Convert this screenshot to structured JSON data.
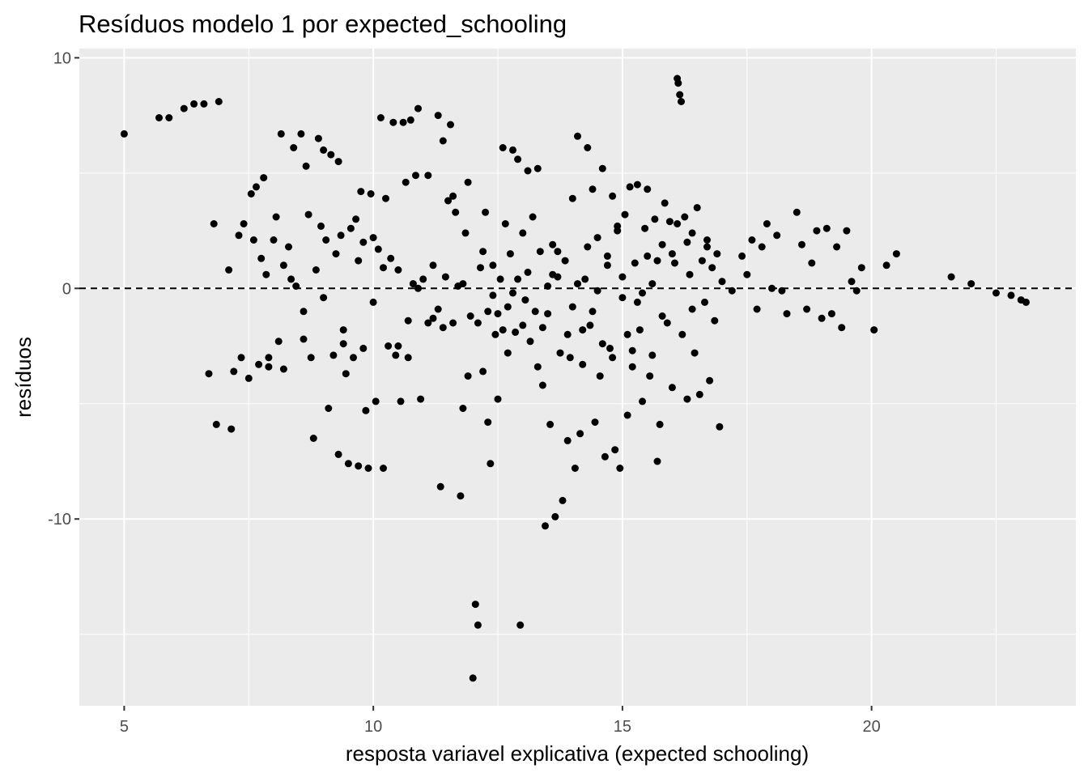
{
  "chart_data": {
    "type": "scatter",
    "title": "Resíduos modelo 1 por expected_schooling",
    "xlabel": "resposta variavel explicativa (expected schooling)",
    "ylabel": "resíduos",
    "xlim": [
      4.1,
      24.1
    ],
    "ylim": [
      -18.1,
      10.4
    ],
    "x_ticks": [
      5,
      10,
      15,
      20
    ],
    "x_tick_labels": [
      "5",
      "10",
      "15",
      "20"
    ],
    "y_ticks": [
      -10,
      0,
      10
    ],
    "y_tick_labels": [
      "-10",
      "0",
      "10"
    ],
    "hline": 0,
    "grid": true,
    "background": "#ebebeb",
    "point_color": "#000000",
    "points": [
      [
        5.0,
        6.7
      ],
      [
        5.7,
        7.4
      ],
      [
        5.9,
        7.4
      ],
      [
        6.2,
        7.8
      ],
      [
        6.4,
        8.0
      ],
      [
        6.6,
        8.0
      ],
      [
        6.9,
        8.1
      ],
      [
        6.7,
        -3.7
      ],
      [
        6.8,
        2.8
      ],
      [
        6.85,
        -5.9
      ],
      [
        7.1,
        0.8
      ],
      [
        7.15,
        -6.1
      ],
      [
        7.2,
        -3.6
      ],
      [
        7.3,
        2.3
      ],
      [
        7.4,
        2.8
      ],
      [
        7.35,
        -3.0
      ],
      [
        7.5,
        -3.9
      ],
      [
        7.55,
        4.1
      ],
      [
        7.6,
        2.1
      ],
      [
        7.65,
        4.4
      ],
      [
        7.7,
        -3.3
      ],
      [
        7.75,
        1.3
      ],
      [
        7.8,
        4.8
      ],
      [
        7.85,
        0.6
      ],
      [
        7.9,
        -3.0
      ],
      [
        8.0,
        2.1
      ],
      [
        8.05,
        3.1
      ],
      [
        8.1,
        -2.3
      ],
      [
        8.15,
        6.7
      ],
      [
        8.2,
        -3.5
      ],
      [
        8.3,
        1.8
      ],
      [
        8.35,
        0.4
      ],
      [
        8.4,
        6.1
      ],
      [
        8.45,
        0.1
      ],
      [
        8.55,
        6.7
      ],
      [
        8.6,
        -2.2
      ],
      [
        8.65,
        5.3
      ],
      [
        8.7,
        3.2
      ],
      [
        8.75,
        -3.0
      ],
      [
        8.8,
        -6.5
      ],
      [
        8.85,
        0.8
      ],
      [
        8.9,
        6.5
      ],
      [
        8.95,
        2.7
      ],
      [
        9.0,
        -0.4
      ],
      [
        9.05,
        2.1
      ],
      [
        9.1,
        -5.2
      ],
      [
        9.15,
        5.8
      ],
      [
        9.2,
        -2.9
      ],
      [
        9.25,
        1.5
      ],
      [
        9.3,
        -7.2
      ],
      [
        9.35,
        2.3
      ],
      [
        9.4,
        -1.8
      ],
      [
        9.45,
        -3.7
      ],
      [
        9.5,
        -7.6
      ],
      [
        9.55,
        2.6
      ],
      [
        9.6,
        -3.0
      ],
      [
        9.65,
        3.0
      ],
      [
        9.7,
        -7.7
      ],
      [
        9.75,
        4.2
      ],
      [
        9.8,
        -2.6
      ],
      [
        9.85,
        -5.3
      ],
      [
        9.9,
        -7.8
      ],
      [
        9.95,
        4.1
      ],
      [
        10.0,
        2.2
      ],
      [
        10.05,
        -4.9
      ],
      [
        10.1,
        1.7
      ],
      [
        10.15,
        7.4
      ],
      [
        10.2,
        -7.8
      ],
      [
        10.25,
        3.9
      ],
      [
        10.3,
        -2.5
      ],
      [
        10.35,
        1.3
      ],
      [
        10.4,
        7.2
      ],
      [
        10.45,
        -2.9
      ],
      [
        10.5,
        0.8
      ],
      [
        10.55,
        -4.9
      ],
      [
        10.6,
        7.2
      ],
      [
        10.65,
        4.6
      ],
      [
        10.7,
        -3.0
      ],
      [
        10.75,
        7.3
      ],
      [
        10.8,
        0.2
      ],
      [
        10.85,
        4.9
      ],
      [
        10.9,
        7.8
      ],
      [
        10.95,
        -4.8
      ],
      [
        11.0,
        0.4
      ],
      [
        11.1,
        4.9
      ],
      [
        11.2,
        -1.3
      ],
      [
        11.3,
        7.5
      ],
      [
        11.35,
        -8.6
      ],
      [
        11.4,
        6.4
      ],
      [
        11.45,
        0.5
      ],
      [
        11.5,
        3.8
      ],
      [
        11.55,
        7.1
      ],
      [
        11.6,
        -1.5
      ],
      [
        11.65,
        3.3
      ],
      [
        11.7,
        0.1
      ],
      [
        11.75,
        -9.0
      ],
      [
        11.8,
        -5.2
      ],
      [
        11.85,
        2.4
      ],
      [
        11.9,
        4.6
      ],
      [
        11.95,
        -1.2
      ],
      [
        12.0,
        -16.9
      ],
      [
        12.05,
        -13.7
      ],
      [
        12.1,
        -14.6
      ],
      [
        12.15,
        0.9
      ],
      [
        12.2,
        -3.6
      ],
      [
        12.25,
        3.3
      ],
      [
        12.3,
        -5.8
      ],
      [
        12.35,
        -7.6
      ],
      [
        12.4,
        1.0
      ],
      [
        12.45,
        -2.0
      ],
      [
        12.5,
        -4.8
      ],
      [
        12.55,
        0.4
      ],
      [
        12.6,
        6.1
      ],
      [
        12.65,
        2.8
      ],
      [
        12.7,
        -0.8
      ],
      [
        12.75,
        1.5
      ],
      [
        12.8,
        6.0
      ],
      [
        12.85,
        -1.9
      ],
      [
        12.9,
        5.6
      ],
      [
        12.95,
        -14.6
      ],
      [
        13.0,
        2.4
      ],
      [
        13.05,
        -0.5
      ],
      [
        13.1,
        5.1
      ],
      [
        13.15,
        -2.3
      ],
      [
        13.2,
        3.1
      ],
      [
        13.25,
        -1.0
      ],
      [
        13.3,
        5.2
      ],
      [
        13.35,
        1.6
      ],
      [
        13.4,
        -4.2
      ],
      [
        13.45,
        -10.3
      ],
      [
        13.5,
        -1.1
      ],
      [
        13.55,
        -5.9
      ],
      [
        13.6,
        1.9
      ],
      [
        13.65,
        -9.9
      ],
      [
        13.7,
        0.5
      ],
      [
        13.75,
        -2.8
      ],
      [
        13.8,
        -9.2
      ],
      [
        13.85,
        1.2
      ],
      [
        13.9,
        -6.6
      ],
      [
        13.95,
        -3.0
      ],
      [
        14.0,
        3.9
      ],
      [
        14.05,
        -7.8
      ],
      [
        14.1,
        6.6
      ],
      [
        14.15,
        -6.3
      ],
      [
        14.2,
        -3.3
      ],
      [
        14.25,
        0.4
      ],
      [
        14.3,
        6.1
      ],
      [
        14.35,
        -1.6
      ],
      [
        14.4,
        4.3
      ],
      [
        14.45,
        -5.8
      ],
      [
        14.5,
        2.2
      ],
      [
        14.55,
        -3.8
      ],
      [
        14.6,
        5.2
      ],
      [
        14.65,
        -7.3
      ],
      [
        14.7,
        1.4
      ],
      [
        14.75,
        -2.6
      ],
      [
        14.8,
        4.0
      ],
      [
        14.85,
        -7.0
      ],
      [
        14.9,
        2.5
      ],
      [
        14.95,
        -7.8
      ],
      [
        15.0,
        -0.4
      ],
      [
        15.05,
        3.2
      ],
      [
        15.1,
        -5.5
      ],
      [
        15.15,
        4.4
      ],
      [
        15.2,
        -3.4
      ],
      [
        15.25,
        1.1
      ],
      [
        15.3,
        4.5
      ],
      [
        15.35,
        -1.8
      ],
      [
        15.4,
        -4.9
      ],
      [
        15.45,
        2.6
      ],
      [
        15.5,
        4.3
      ],
      [
        15.55,
        -3.8
      ],
      [
        15.6,
        0.2
      ],
      [
        15.65,
        3.0
      ],
      [
        15.7,
        -7.5
      ],
      [
        15.75,
        -5.9
      ],
      [
        15.8,
        1.9
      ],
      [
        15.85,
        3.7
      ],
      [
        15.9,
        -1.5
      ],
      [
        15.95,
        2.9
      ],
      [
        16.0,
        -4.3
      ],
      [
        16.05,
        1.1
      ],
      [
        16.1,
        9.1
      ],
      [
        16.12,
        8.9
      ],
      [
        16.15,
        8.4
      ],
      [
        16.18,
        8.1
      ],
      [
        16.2,
        -2.0
      ],
      [
        16.25,
        3.1
      ],
      [
        16.3,
        -4.8
      ],
      [
        16.35,
        0.6
      ],
      [
        16.4,
        2.4
      ],
      [
        16.45,
        -2.8
      ],
      [
        16.5,
        3.5
      ],
      [
        16.55,
        -4.6
      ],
      [
        16.6,
        1.2
      ],
      [
        16.65,
        -0.6
      ],
      [
        16.7,
        2.1
      ],
      [
        16.75,
        -4.0
      ],
      [
        16.8,
        0.9
      ],
      [
        16.85,
        -1.4
      ],
      [
        16.9,
        1.5
      ],
      [
        16.95,
        -6.0
      ],
      [
        17.0,
        0.3
      ],
      [
        17.2,
        -0.1
      ],
      [
        17.4,
        1.4
      ],
      [
        17.5,
        0.6
      ],
      [
        17.6,
        2.1
      ],
      [
        17.7,
        -0.9
      ],
      [
        17.8,
        1.8
      ],
      [
        17.9,
        2.8
      ],
      [
        18.0,
        0.0
      ],
      [
        18.1,
        2.3
      ],
      [
        18.2,
        -0.1
      ],
      [
        18.3,
        -1.1
      ],
      [
        18.5,
        3.3
      ],
      [
        18.6,
        1.9
      ],
      [
        18.7,
        -0.9
      ],
      [
        18.8,
        1.1
      ],
      [
        18.9,
        2.5
      ],
      [
        19.0,
        -1.3
      ],
      [
        19.1,
        2.6
      ],
      [
        19.2,
        -1.1
      ],
      [
        19.3,
        1.8
      ],
      [
        19.4,
        -1.7
      ],
      [
        19.5,
        2.5
      ],
      [
        19.6,
        0.3
      ],
      [
        19.7,
        -0.1
      ],
      [
        19.8,
        0.9
      ],
      [
        20.05,
        -1.8
      ],
      [
        20.3,
        1.0
      ],
      [
        20.5,
        1.5
      ],
      [
        21.6,
        0.5
      ],
      [
        22.0,
        0.2
      ],
      [
        22.5,
        -0.2
      ],
      [
        22.8,
        -0.3
      ],
      [
        23.0,
        -0.5
      ],
      [
        23.1,
        -0.6
      ],
      [
        9.0,
        6.0
      ],
      [
        9.3,
        5.5
      ],
      [
        9.8,
        2.0
      ],
      [
        10.7,
        -1.4
      ],
      [
        11.2,
        1.0
      ],
      [
        11.6,
        4.0
      ],
      [
        12.2,
        1.6
      ],
      [
        12.5,
        -1.1
      ],
      [
        12.8,
        -0.2
      ],
      [
        13.1,
        0.7
      ],
      [
        13.4,
        -1.7
      ],
      [
        13.7,
        1.6
      ],
      [
        14.0,
        -0.8
      ],
      [
        14.3,
        1.8
      ],
      [
        14.6,
        -2.4
      ],
      [
        14.9,
        2.7
      ],
      [
        15.2,
        -2.7
      ],
      [
        15.5,
        1.4
      ],
      [
        15.8,
        -1.2
      ],
      [
        16.1,
        2.8
      ],
      [
        16.4,
        -0.9
      ],
      [
        16.7,
        1.8
      ],
      [
        11.9,
        -3.8
      ],
      [
        12.3,
        -1.0
      ],
      [
        12.7,
        -2.8
      ],
      [
        13.3,
        -3.4
      ],
      [
        13.9,
        -2.0
      ],
      [
        14.4,
        -1.0
      ],
      [
        14.8,
        -3.0
      ],
      [
        15.3,
        -0.6
      ],
      [
        15.7,
        1.2
      ],
      [
        16.0,
        1.5
      ],
      [
        11.1,
        -1.5
      ],
      [
        11.4,
        -1.7
      ],
      [
        12.1,
        -1.5
      ],
      [
        12.6,
        -1.8
      ],
      [
        13.0,
        -1.6
      ],
      [
        13.6,
        0.6
      ],
      [
        14.2,
        -1.8
      ],
      [
        14.7,
        1.0
      ],
      [
        15.1,
        -2.0
      ],
      [
        15.6,
        -2.9
      ],
      [
        16.3,
        2.0
      ],
      [
        10.2,
        0.9
      ],
      [
        10.5,
        -2.5
      ],
      [
        10.9,
        0.0
      ],
      [
        11.3,
        -0.9
      ],
      [
        11.8,
        0.2
      ],
      [
        12.4,
        -0.3
      ],
      [
        12.9,
        0.4
      ],
      [
        13.5,
        0.1
      ],
      [
        14.1,
        0.2
      ],
      [
        14.5,
        -0.1
      ],
      [
        15.0,
        0.5
      ],
      [
        15.4,
        -0.2
      ],
      [
        7.9,
        -3.4
      ],
      [
        8.2,
        1.0
      ],
      [
        8.6,
        -1.0
      ],
      [
        9.4,
        -2.4
      ],
      [
        9.7,
        1.2
      ],
      [
        10.0,
        -0.6
      ]
    ]
  }
}
